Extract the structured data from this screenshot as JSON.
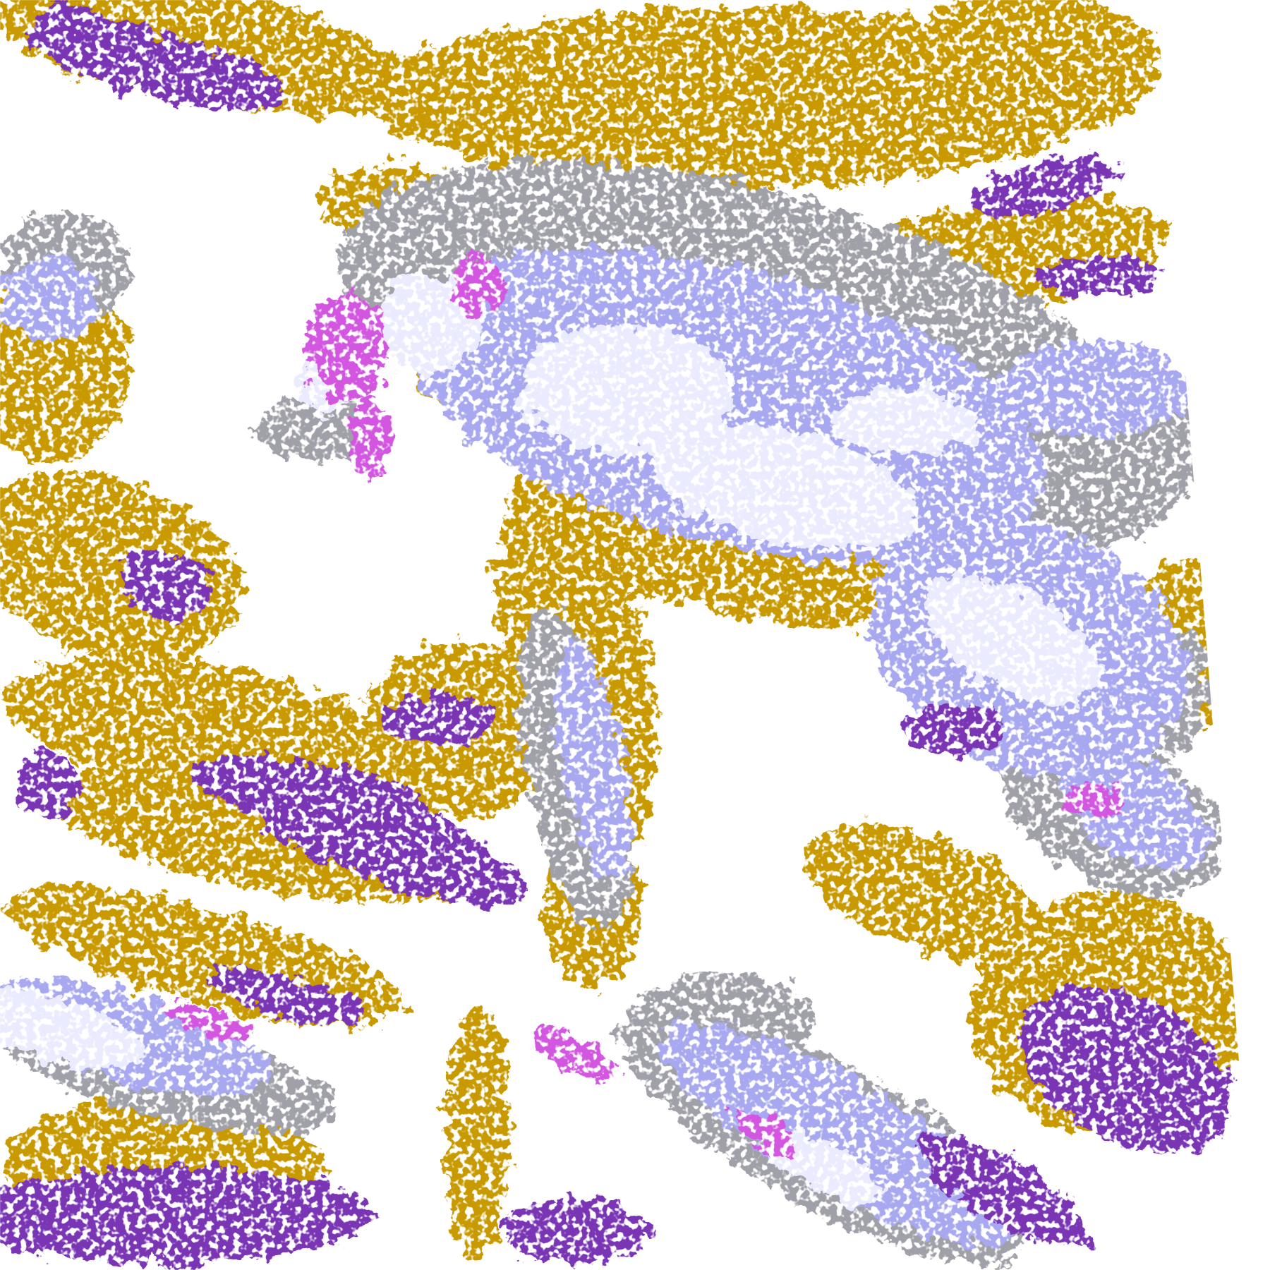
{
  "map": {
    "background": "#ffffff",
    "palette": {
      "low_cloud": "#c89a00",
      "mid_cloud": "#7a35b5",
      "high_thin": "#d256e0",
      "cirrus_gray": "#a0a0a8",
      "cumulus_periwinkle": "#a8a8f0",
      "deep_convection": "#ebebff"
    }
  }
}
